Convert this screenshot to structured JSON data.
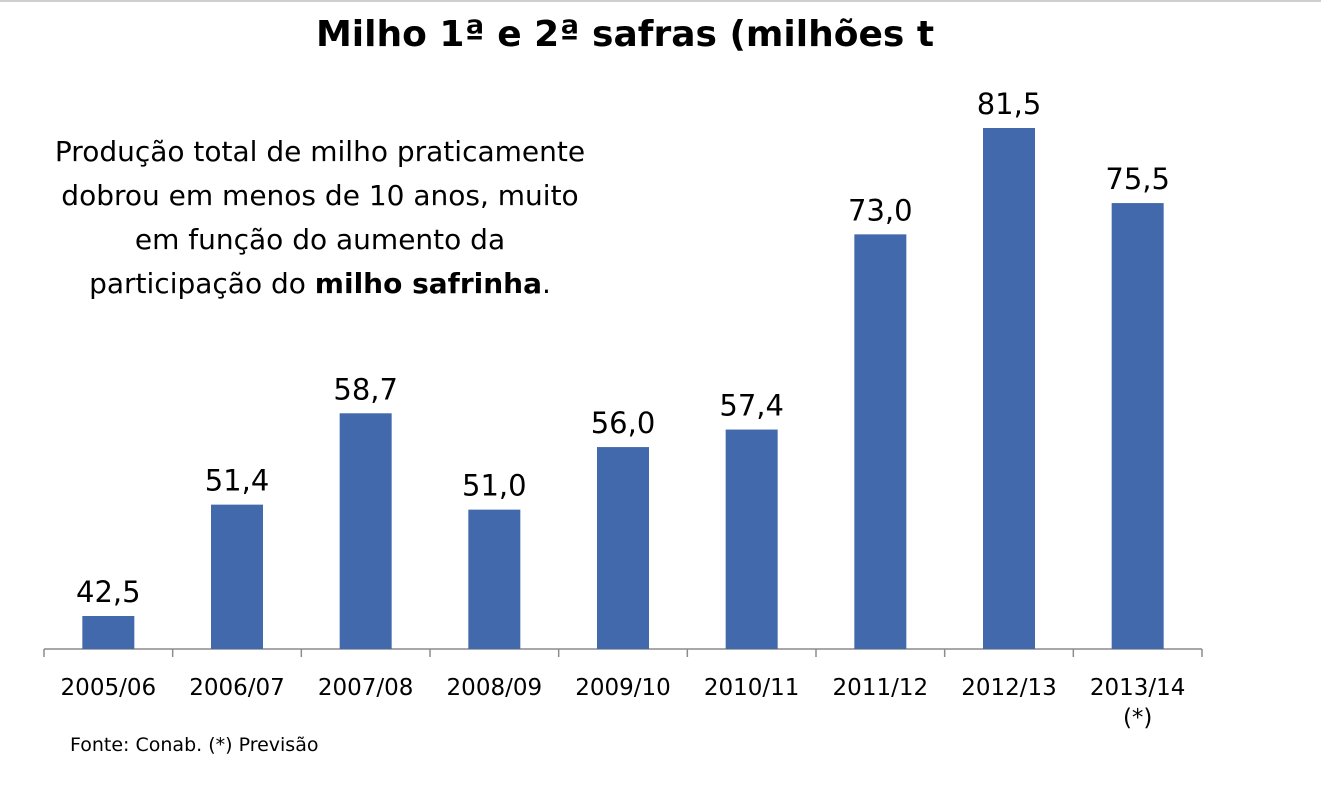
{
  "chart_data": {
    "type": "bar",
    "title": "Milho 1ª e 2ª safras (milhões t",
    "categories": [
      "2005/06",
      "2006/07",
      "2007/08",
      "2008/09",
      "2009/10",
      "2010/11",
      "2011/12",
      "2012/13",
      "2013/14\n(*)"
    ],
    "values": [
      42.5,
      51.4,
      58.7,
      51.0,
      56.0,
      57.4,
      73.0,
      81.5,
      75.5
    ],
    "value_labels": [
      "42,5",
      "51,4",
      "58,7",
      "51,0",
      "56,0",
      "57,4",
      "73,0",
      "81,5",
      "75,5"
    ],
    "xlabel": "",
    "ylabel": "",
    "ylim": [
      40,
      85
    ],
    "grid": false,
    "legend": "none",
    "bar_color": "#4169AB",
    "annotation": {
      "line1": "Produção total de milho praticamente",
      "line2": "dobrou em menos de 10 anos, muito",
      "line3": "em função do aumento da",
      "line4_prefix": "participação do ",
      "line4_bold": "milho safrinha",
      "line4_suffix": "."
    },
    "source": "Fonte: Conab. (*) Previsão"
  }
}
